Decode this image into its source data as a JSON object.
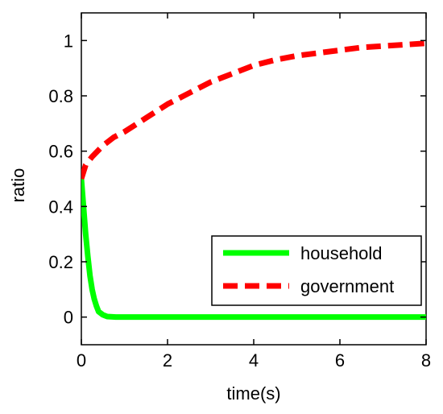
{
  "chart_data": {
    "type": "line",
    "xlabel": "time(s)",
    "ylabel": "ratio",
    "xlim": [
      0,
      8
    ],
    "ylim": [
      -0.1,
      1.1
    ],
    "x_ticks": [
      0,
      2,
      4,
      6,
      8
    ],
    "y_ticks": [
      0,
      0.2,
      0.4,
      0.6,
      0.8,
      1
    ],
    "x_tick_labels": [
      "0",
      "2",
      "4",
      "6",
      "8"
    ],
    "y_tick_labels": [
      "0",
      "0.2",
      "0.4",
      "0.6",
      "0.8",
      "1"
    ],
    "grid": false,
    "legend_position": "bottom-right",
    "series": [
      {
        "name": "household",
        "color": "#00ff00",
        "style": "solid",
        "x": [
          0,
          0.05,
          0.1,
          0.15,
          0.2,
          0.25,
          0.3,
          0.35,
          0.4,
          0.5,
          0.6,
          0.8,
          1,
          2,
          3,
          4,
          5,
          6,
          7,
          8
        ],
        "y": [
          0.5,
          0.4,
          0.3,
          0.22,
          0.15,
          0.1,
          0.065,
          0.04,
          0.02,
          0.008,
          0.002,
          0,
          0,
          0,
          0,
          0,
          0,
          0,
          0,
          0
        ]
      },
      {
        "name": "government",
        "color": "#ff0000",
        "style": "dashed",
        "x": [
          0,
          0.1,
          0.25,
          0.5,
          0.75,
          1,
          1.5,
          2,
          2.5,
          3,
          3.5,
          4,
          4.5,
          5,
          5.5,
          6,
          6.5,
          7,
          7.5,
          8
        ],
        "y": [
          0.5,
          0.55,
          0.58,
          0.62,
          0.65,
          0.67,
          0.72,
          0.77,
          0.81,
          0.85,
          0.88,
          0.91,
          0.93,
          0.945,
          0.955,
          0.965,
          0.975,
          0.98,
          0.985,
          0.99
        ]
      }
    ]
  }
}
